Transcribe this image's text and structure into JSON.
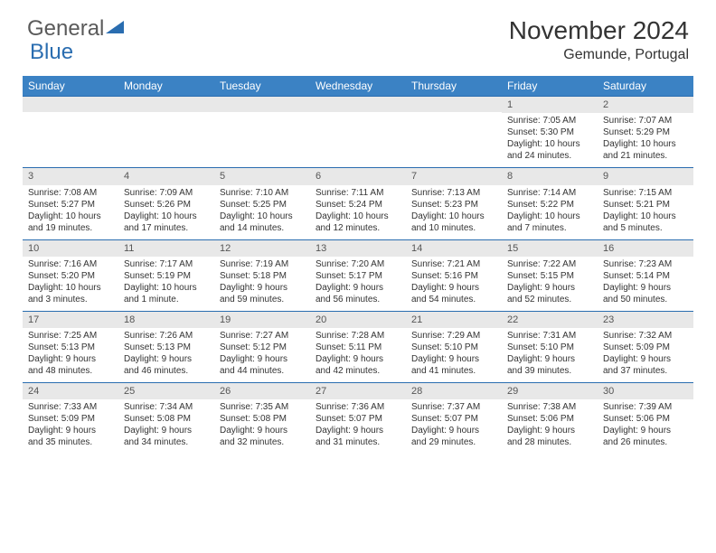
{
  "logo": {
    "text_general": "General",
    "text_blue": "Blue"
  },
  "title": {
    "month": "November 2024",
    "location": "Gemunde, Portugal"
  },
  "style": {
    "header_bg": "#3b82c4",
    "header_text": "#ffffff",
    "daynum_bg": "#e8e8e8",
    "border_color": "#2a6db0",
    "body_text": "#333333",
    "font_family": "Arial",
    "th_fontsize": 12,
    "cell_fontsize": 10,
    "title_fontsize": 28,
    "location_fontsize": 16
  },
  "weekdays": [
    "Sunday",
    "Monday",
    "Tuesday",
    "Wednesday",
    "Thursday",
    "Friday",
    "Saturday"
  ],
  "weeks": [
    [
      null,
      null,
      null,
      null,
      null,
      {
        "n": "1",
        "sr": "Sunrise: 7:05 AM",
        "ss": "Sunset: 5:30 PM",
        "dl": "Daylight: 10 hours and 24 minutes."
      },
      {
        "n": "2",
        "sr": "Sunrise: 7:07 AM",
        "ss": "Sunset: 5:29 PM",
        "dl": "Daylight: 10 hours and 21 minutes."
      }
    ],
    [
      {
        "n": "3",
        "sr": "Sunrise: 7:08 AM",
        "ss": "Sunset: 5:27 PM",
        "dl": "Daylight: 10 hours and 19 minutes."
      },
      {
        "n": "4",
        "sr": "Sunrise: 7:09 AM",
        "ss": "Sunset: 5:26 PM",
        "dl": "Daylight: 10 hours and 17 minutes."
      },
      {
        "n": "5",
        "sr": "Sunrise: 7:10 AM",
        "ss": "Sunset: 5:25 PM",
        "dl": "Daylight: 10 hours and 14 minutes."
      },
      {
        "n": "6",
        "sr": "Sunrise: 7:11 AM",
        "ss": "Sunset: 5:24 PM",
        "dl": "Daylight: 10 hours and 12 minutes."
      },
      {
        "n": "7",
        "sr": "Sunrise: 7:13 AM",
        "ss": "Sunset: 5:23 PM",
        "dl": "Daylight: 10 hours and 10 minutes."
      },
      {
        "n": "8",
        "sr": "Sunrise: 7:14 AM",
        "ss": "Sunset: 5:22 PM",
        "dl": "Daylight: 10 hours and 7 minutes."
      },
      {
        "n": "9",
        "sr": "Sunrise: 7:15 AM",
        "ss": "Sunset: 5:21 PM",
        "dl": "Daylight: 10 hours and 5 minutes."
      }
    ],
    [
      {
        "n": "10",
        "sr": "Sunrise: 7:16 AM",
        "ss": "Sunset: 5:20 PM",
        "dl": "Daylight: 10 hours and 3 minutes."
      },
      {
        "n": "11",
        "sr": "Sunrise: 7:17 AM",
        "ss": "Sunset: 5:19 PM",
        "dl": "Daylight: 10 hours and 1 minute."
      },
      {
        "n": "12",
        "sr": "Sunrise: 7:19 AM",
        "ss": "Sunset: 5:18 PM",
        "dl": "Daylight: 9 hours and 59 minutes."
      },
      {
        "n": "13",
        "sr": "Sunrise: 7:20 AM",
        "ss": "Sunset: 5:17 PM",
        "dl": "Daylight: 9 hours and 56 minutes."
      },
      {
        "n": "14",
        "sr": "Sunrise: 7:21 AM",
        "ss": "Sunset: 5:16 PM",
        "dl": "Daylight: 9 hours and 54 minutes."
      },
      {
        "n": "15",
        "sr": "Sunrise: 7:22 AM",
        "ss": "Sunset: 5:15 PM",
        "dl": "Daylight: 9 hours and 52 minutes."
      },
      {
        "n": "16",
        "sr": "Sunrise: 7:23 AM",
        "ss": "Sunset: 5:14 PM",
        "dl": "Daylight: 9 hours and 50 minutes."
      }
    ],
    [
      {
        "n": "17",
        "sr": "Sunrise: 7:25 AM",
        "ss": "Sunset: 5:13 PM",
        "dl": "Daylight: 9 hours and 48 minutes."
      },
      {
        "n": "18",
        "sr": "Sunrise: 7:26 AM",
        "ss": "Sunset: 5:13 PM",
        "dl": "Daylight: 9 hours and 46 minutes."
      },
      {
        "n": "19",
        "sr": "Sunrise: 7:27 AM",
        "ss": "Sunset: 5:12 PM",
        "dl": "Daylight: 9 hours and 44 minutes."
      },
      {
        "n": "20",
        "sr": "Sunrise: 7:28 AM",
        "ss": "Sunset: 5:11 PM",
        "dl": "Daylight: 9 hours and 42 minutes."
      },
      {
        "n": "21",
        "sr": "Sunrise: 7:29 AM",
        "ss": "Sunset: 5:10 PM",
        "dl": "Daylight: 9 hours and 41 minutes."
      },
      {
        "n": "22",
        "sr": "Sunrise: 7:31 AM",
        "ss": "Sunset: 5:10 PM",
        "dl": "Daylight: 9 hours and 39 minutes."
      },
      {
        "n": "23",
        "sr": "Sunrise: 7:32 AM",
        "ss": "Sunset: 5:09 PM",
        "dl": "Daylight: 9 hours and 37 minutes."
      }
    ],
    [
      {
        "n": "24",
        "sr": "Sunrise: 7:33 AM",
        "ss": "Sunset: 5:09 PM",
        "dl": "Daylight: 9 hours and 35 minutes."
      },
      {
        "n": "25",
        "sr": "Sunrise: 7:34 AM",
        "ss": "Sunset: 5:08 PM",
        "dl": "Daylight: 9 hours and 34 minutes."
      },
      {
        "n": "26",
        "sr": "Sunrise: 7:35 AM",
        "ss": "Sunset: 5:08 PM",
        "dl": "Daylight: 9 hours and 32 minutes."
      },
      {
        "n": "27",
        "sr": "Sunrise: 7:36 AM",
        "ss": "Sunset: 5:07 PM",
        "dl": "Daylight: 9 hours and 31 minutes."
      },
      {
        "n": "28",
        "sr": "Sunrise: 7:37 AM",
        "ss": "Sunset: 5:07 PM",
        "dl": "Daylight: 9 hours and 29 minutes."
      },
      {
        "n": "29",
        "sr": "Sunrise: 7:38 AM",
        "ss": "Sunset: 5:06 PM",
        "dl": "Daylight: 9 hours and 28 minutes."
      },
      {
        "n": "30",
        "sr": "Sunrise: 7:39 AM",
        "ss": "Sunset: 5:06 PM",
        "dl": "Daylight: 9 hours and 26 minutes."
      }
    ]
  ]
}
